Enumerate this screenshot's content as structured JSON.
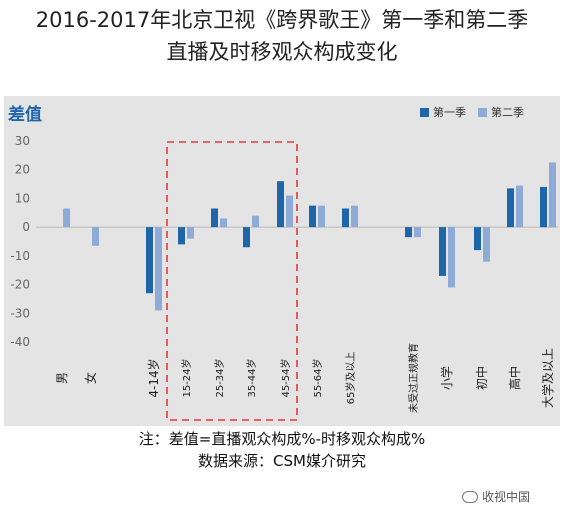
{
  "title_line1": "2016-2017年北京卫视《跨界歌王》第一季和第二季",
  "title_line2": "直播及时移观众构成变化",
  "note_line1": "注：差值=直播观众构成%-时移观众构成%",
  "note_line2": "数据来源：CSM媒介研究",
  "watermark": "收视中国",
  "colors": {
    "series1": "#1f66a8",
    "series2": "#8eaad6",
    "highlight": "#e23b3b",
    "background": "#e4e4e4"
  },
  "chart_data": {
    "type": "bar",
    "title": "差值",
    "ylim": [
      -40,
      30
    ],
    "yticks": [
      30,
      20,
      10,
      0,
      -10,
      -20,
      -30,
      -40
    ],
    "grid": false,
    "legend_position": "top-right",
    "highlight_categories": [
      "15-24岁",
      "25-34岁",
      "35-44岁",
      "45-54岁"
    ],
    "categories": [
      "男",
      "女",
      "4-14岁",
      "15-24岁",
      "25-34岁",
      "35-44岁",
      "45-54岁",
      "55-64岁",
      "65岁及以上",
      "未受过正规教育",
      "小学",
      "初中",
      "高中",
      "大学及以上"
    ],
    "series": [
      {
        "name": "第一季",
        "values": [
          0,
          0,
          -23,
          -6,
          6.5,
          -7,
          16,
          7.5,
          6.5,
          -3.5,
          -17,
          -8,
          13.5,
          14
        ]
      },
      {
        "name": "第二季",
        "values": [
          6.5,
          -6.5,
          -29,
          -4,
          3,
          4,
          11,
          7.5,
          7.5,
          -3.5,
          -21,
          -12,
          14.5,
          22.5
        ]
      }
    ]
  }
}
